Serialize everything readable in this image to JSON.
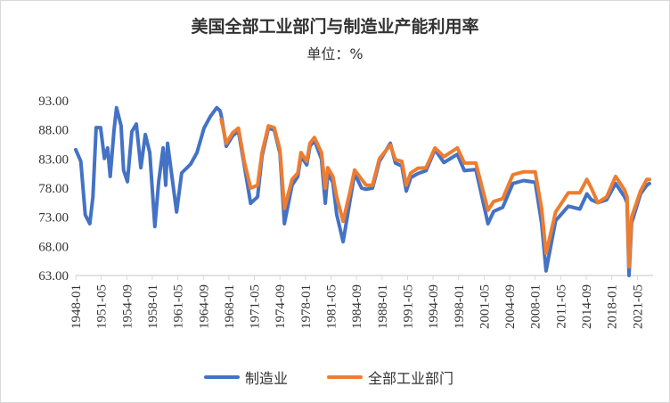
{
  "chart_data": {
    "type": "line",
    "title": "美国全部工业部门与制造业产能利用率",
    "subtitle": "单位：%",
    "xlabel": "",
    "ylabel": "",
    "ylim": [
      63,
      93
    ],
    "yticks": [
      "63.00",
      "68.00",
      "73.00",
      "78.00",
      "83.00",
      "88.00",
      "93.00"
    ],
    "xticks": [
      "1948-01",
      "1951-05",
      "1954-09",
      "1958-01",
      "1961-05",
      "1964-09",
      "1968-01",
      "1971-05",
      "1974-09",
      "1978-01",
      "1981-05",
      "1984-09",
      "1988-01",
      "1991-05",
      "1994-09",
      "1998-01",
      "2001-05",
      "2004-09",
      "2008-01",
      "2011-05",
      "2014-09",
      "2018-01",
      "2021-05"
    ],
    "grid": false,
    "legend_position": "bottom",
    "x": [
      "1948-01",
      "1948-09",
      "1949-04",
      "1949-11",
      "1950-04",
      "1950-09",
      "1951-04",
      "1951-10",
      "1952-03",
      "1952-07",
      "1953-01",
      "1953-05",
      "1953-12",
      "1954-04",
      "1954-10",
      "1955-05",
      "1955-12",
      "1956-07",
      "1957-02",
      "1957-09",
      "1958-05",
      "1958-11",
      "1959-06",
      "1959-10",
      "1960-01",
      "1961-03",
      "1961-11",
      "1963-01",
      "1963-11",
      "1964-10",
      "1965-08",
      "1966-06",
      "1966-11",
      "1967-01",
      "1967-09",
      "1968-07",
      "1969-04",
      "1970-01",
      "1970-11",
      "1971-10",
      "1972-05",
      "1973-03",
      "1973-12",
      "1974-09",
      "1975-04",
      "1976-04",
      "1977-01",
      "1977-06",
      "1978-03",
      "1978-08",
      "1979-03",
      "1980-02",
      "1980-08",
      "1980-12",
      "1981-08",
      "1982-02",
      "1982-12",
      "1983-11",
      "1984-06",
      "1985-05",
      "1985-12",
      "1986-10",
      "1987-09",
      "1989-02",
      "1989-10",
      "1990-08",
      "1991-03",
      "1991-10",
      "1992-09",
      "1993-10",
      "1994-12",
      "1996-02",
      "1997-11",
      "1998-10",
      "2000-04",
      "2001-11",
      "2002-08",
      "2003-10",
      "2005-02",
      "2006-07",
      "2008-01",
      "2008-11",
      "2009-06",
      "2010-09",
      "2012-05",
      "2013-11",
      "2014-10",
      "2015-05",
      "2016-03",
      "2017-05",
      "2018-07",
      "2019-09",
      "2020-01",
      "2020-04",
      "2020-08",
      "2021-10",
      "2022-08",
      "2022-12"
    ],
    "series": [
      {
        "name": "制造业",
        "color": "#4472c4",
        "values": [
          84.6,
          82.6,
          73.4,
          71.9,
          76.5,
          88.4,
          88.4,
          83.1,
          84.9,
          80.0,
          88.0,
          91.8,
          88.7,
          81.1,
          79.1,
          87.7,
          89.0,
          81.5,
          87.2,
          84.1,
          71.4,
          79.1,
          84.9,
          78.5,
          85.7,
          73.9,
          80.6,
          82.1,
          84.1,
          88.3,
          90.3,
          91.8,
          91.3,
          90.5,
          85.2,
          87.0,
          87.8,
          82.0,
          75.4,
          76.5,
          83.5,
          88.3,
          88.0,
          84.0,
          71.9,
          78.5,
          80.0,
          83.5,
          82.0,
          85.2,
          86.2,
          83.0,
          75.4,
          80.5,
          79.0,
          73.5,
          68.8,
          76.0,
          80.5,
          78.0,
          77.8,
          78.0,
          82.6,
          85.7,
          82.3,
          81.8,
          77.5,
          79.8,
          80.5,
          81.0,
          84.6,
          82.4,
          83.8,
          81.0,
          81.2,
          71.9,
          74.0,
          74.7,
          78.8,
          79.3,
          79.0,
          72.0,
          63.8,
          72.4,
          74.9,
          74.4,
          77.0,
          76.0,
          75.5,
          76.0,
          78.8,
          76.5,
          75.5,
          63.0,
          72.0,
          77.0,
          78.5,
          78.8
        ]
      },
      {
        "name": "全部工业部门",
        "color": "#ed7d31",
        "values": [
          null,
          null,
          null,
          null,
          null,
          null,
          null,
          null,
          null,
          null,
          null,
          null,
          null,
          null,
          null,
          null,
          null,
          null,
          null,
          null,
          null,
          null,
          null,
          null,
          null,
          null,
          null,
          null,
          null,
          null,
          null,
          null,
          null,
          89.8,
          85.7,
          87.5,
          88.3,
          82.6,
          78.0,
          78.5,
          84.1,
          88.7,
          88.4,
          84.6,
          74.5,
          79.5,
          80.6,
          84.1,
          82.6,
          85.7,
          86.7,
          84.1,
          78.0,
          81.5,
          80.0,
          76.5,
          72.3,
          77.5,
          81.1,
          79.5,
          78.5,
          78.5,
          83.1,
          85.4,
          82.9,
          82.6,
          78.5,
          80.6,
          81.4,
          81.5,
          84.9,
          83.4,
          84.9,
          82.3,
          82.3,
          74.2,
          75.7,
          76.2,
          80.3,
          80.8,
          80.8,
          74.5,
          66.8,
          73.9,
          77.2,
          77.2,
          79.5,
          78.0,
          75.5,
          76.5,
          80.0,
          77.7,
          76.5,
          64.5,
          73.0,
          77.5,
          79.5,
          79.5
        ]
      }
    ]
  }
}
